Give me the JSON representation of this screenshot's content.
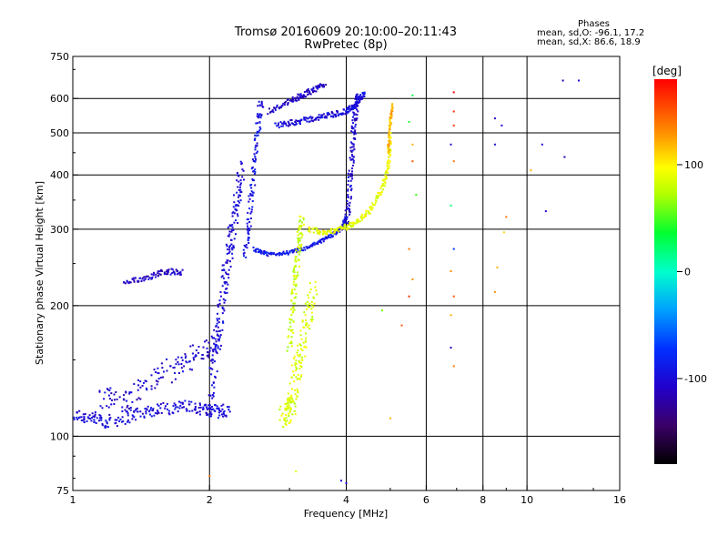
{
  "header": {
    "title_line1": "Tromsø 20160609 20:10:00–20:11:43",
    "title_line2": "RwPretec (8p)"
  },
  "phases": {
    "label": "Phases",
    "line_o": "mean, sd,O: -96.1, 17.2",
    "line_x": "mean, sd,X:  86.6, 18.9"
  },
  "colorbar": {
    "unit_label": "[deg]",
    "ticks": [
      {
        "value": 100,
        "label": "100"
      },
      {
        "value": 0,
        "label": "0"
      },
      {
        "value": -100,
        "label": "-100"
      }
    ],
    "range": [
      -180,
      180
    ]
  },
  "chart_data": {
    "type": "scatter",
    "title": "Tromsø 20160609 20:10:00–20:11:43",
    "subtitle": "RwPretec (8p)",
    "xlabel": "Frequency [MHz]",
    "ylabel": "Stationary phase Virtual Height [km]",
    "x_scale": "log",
    "y_scale": "log",
    "xlim": [
      1,
      16
    ],
    "ylim": [
      75,
      750
    ],
    "x_ticks": [
      {
        "value": 1,
        "label": "1"
      },
      {
        "value": 2,
        "label": "2"
      },
      {
        "value": 4,
        "label": "4"
      },
      {
        "value": 6,
        "label": "6"
      },
      {
        "value": 8,
        "label": "8"
      },
      {
        "value": 10,
        "label": "10"
      },
      {
        "value": 16,
        "label": "16"
      }
    ],
    "y_ticks": [
      {
        "value": 75,
        "label": "75"
      },
      {
        "value": 100,
        "label": "100"
      },
      {
        "value": 200,
        "label": "200"
      },
      {
        "value": 300,
        "label": "300"
      },
      {
        "value": 400,
        "label": "400"
      },
      {
        "value": 500,
        "label": "500"
      },
      {
        "value": 600,
        "label": "600"
      },
      {
        "value": 750,
        "label": "750"
      }
    ],
    "grid_x": [
      2,
      4,
      6,
      8,
      10
    ],
    "grid_y": [
      100,
      200,
      300,
      400,
      500,
      600
    ],
    "color_scale_label": "[deg]",
    "traces": [
      {
        "name": "O-low-E",
        "x": [
          1.0,
          1.1,
          1.2,
          1.35,
          1.5,
          1.7,
          1.9,
          2.05,
          2.2
        ],
        "y": [
          112,
          110,
          108,
          112,
          115,
          117,
          116,
          114,
          115
        ],
        "phase": -100,
        "spread": 0.07
      },
      {
        "name": "O-spread-E",
        "x": [
          1.15,
          1.3,
          1.5,
          1.7,
          1.9,
          2.1
        ],
        "y": [
          125,
          120,
          135,
          145,
          155,
          165
        ],
        "phase": -105,
        "spread": 0.12
      },
      {
        "name": "O-Es-line",
        "x": [
          1.3,
          1.45,
          1.6,
          1.75
        ],
        "y": [
          225,
          232,
          240,
          238
        ],
        "phase": -110,
        "spread": 0.03
      },
      {
        "name": "O-vertical-2",
        "x": [
          2.0,
          2.05,
          2.1,
          2.15,
          2.2,
          2.25,
          2.3,
          2.35
        ],
        "y": [
          110,
          150,
          180,
          220,
          260,
          300,
          350,
          420
        ],
        "phase": -100,
        "spread": 0.08
      },
      {
        "name": "O-vertical-2.5",
        "x": [
          2.4,
          2.45,
          2.5,
          2.55,
          2.6
        ],
        "y": [
          260,
          320,
          400,
          500,
          600
        ],
        "phase": -95,
        "spread": 0.05
      },
      {
        "name": "O-F-trace",
        "x": [
          2.5,
          2.7,
          3.0,
          3.3,
          3.6,
          3.9,
          4.0
        ],
        "y": [
          270,
          262,
          265,
          272,
          285,
          300,
          320
        ],
        "phase": -90,
        "spread": 0.02
      },
      {
        "name": "O-F-upper",
        "x": [
          2.8,
          3.1,
          3.4,
          3.7,
          4.0,
          4.2,
          4.4
        ],
        "y": [
          520,
          530,
          540,
          550,
          560,
          580,
          620
        ],
        "phase": -100,
        "spread": 0.03
      },
      {
        "name": "O-vertical-4",
        "x": [
          4.0,
          4.05,
          4.1,
          4.15,
          4.2,
          4.25
        ],
        "y": [
          300,
          350,
          420,
          500,
          570,
          620
        ],
        "phase": -105,
        "spread": 0.05
      },
      {
        "name": "O-high-curve",
        "x": [
          2.7,
          3.0,
          3.2,
          3.4,
          3.6
        ],
        "y": [
          560,
          590,
          610,
          630,
          650
        ],
        "phase": -110,
        "spread": 0.03
      },
      {
        "name": "X-F-trace",
        "x": [
          3.3,
          3.6,
          3.9,
          4.2,
          4.5,
          4.8,
          4.95,
          5.0
        ],
        "y": [
          300,
          295,
          300,
          310,
          330,
          370,
          420,
          500
        ],
        "phase": 90,
        "spread": 0.03
      },
      {
        "name": "X-mid",
        "x": [
          2.9,
          3.0,
          3.05,
          3.1,
          3.2,
          3.3,
          3.4
        ],
        "y": [
          110,
          115,
          120,
          140,
          160,
          190,
          220
        ],
        "phase": 85,
        "spread": 0.1
      },
      {
        "name": "X-vertical-3",
        "x": [
          3.0,
          3.05,
          3.1,
          3.15,
          3.2
        ],
        "y": [
          160,
          200,
          240,
          280,
          320
        ],
        "phase": 80,
        "spread": 0.05
      },
      {
        "name": "X-vertical-5",
        "x": [
          4.95,
          5.0,
          5.05
        ],
        "y": [
          450,
          520,
          580
        ],
        "phase": 120,
        "spread": 0.02
      }
    ],
    "scattered_points": [
      {
        "x": 5.6,
        "y": 610,
        "phase": 30
      },
      {
        "x": 5.5,
        "y": 530,
        "phase": 40
      },
      {
        "x": 5.6,
        "y": 470,
        "phase": 120
      },
      {
        "x": 5.6,
        "y": 430,
        "phase": 150
      },
      {
        "x": 5.7,
        "y": 360,
        "phase": 50
      },
      {
        "x": 5.5,
        "y": 270,
        "phase": 140
      },
      {
        "x": 5.6,
        "y": 230,
        "phase": 130
      },
      {
        "x": 5.5,
        "y": 210,
        "phase": 165
      },
      {
        "x": 5.3,
        "y": 180,
        "phase": 150
      },
      {
        "x": 6.9,
        "y": 620,
        "phase": 180
      },
      {
        "x": 6.9,
        "y": 560,
        "phase": 165
      },
      {
        "x": 6.9,
        "y": 520,
        "phase": 160
      },
      {
        "x": 6.8,
        "y": 470,
        "phase": -100
      },
      {
        "x": 6.9,
        "y": 430,
        "phase": 140
      },
      {
        "x": 6.8,
        "y": 340,
        "phase": 20
      },
      {
        "x": 6.9,
        "y": 270,
        "phase": -70
      },
      {
        "x": 6.8,
        "y": 240,
        "phase": 130
      },
      {
        "x": 6.9,
        "y": 210,
        "phase": 150
      },
      {
        "x": 6.8,
        "y": 190,
        "phase": 120
      },
      {
        "x": 6.8,
        "y": 160,
        "phase": -110
      },
      {
        "x": 6.9,
        "y": 145,
        "phase": 140
      },
      {
        "x": 8.5,
        "y": 540,
        "phase": -110
      },
      {
        "x": 8.8,
        "y": 520,
        "phase": -110
      },
      {
        "x": 8.5,
        "y": 470,
        "phase": -100
      },
      {
        "x": 9.0,
        "y": 320,
        "phase": 140
      },
      {
        "x": 8.9,
        "y": 295,
        "phase": 110
      },
      {
        "x": 8.6,
        "y": 245,
        "phase": 120
      },
      {
        "x": 8.5,
        "y": 215,
        "phase": 130
      },
      {
        "x": 10.2,
        "y": 410,
        "phase": 120
      },
      {
        "x": 10.8,
        "y": 470,
        "phase": -100
      },
      {
        "x": 11.0,
        "y": 330,
        "phase": -110
      },
      {
        "x": 12.1,
        "y": 440,
        "phase": -110
      },
      {
        "x": 12.0,
        "y": 660,
        "phase": -110
      },
      {
        "x": 13.0,
        "y": 660,
        "phase": -100
      },
      {
        "x": 2.0,
        "y": 81,
        "phase": 140
      },
      {
        "x": 3.1,
        "y": 83,
        "phase": 90
      },
      {
        "x": 3.9,
        "y": 79,
        "phase": -100
      },
      {
        "x": 4.0,
        "y": 78,
        "phase": -110
      },
      {
        "x": 4.8,
        "y": 195,
        "phase": 60
      },
      {
        "x": 5.0,
        "y": 110,
        "phase": 120
      }
    ]
  }
}
